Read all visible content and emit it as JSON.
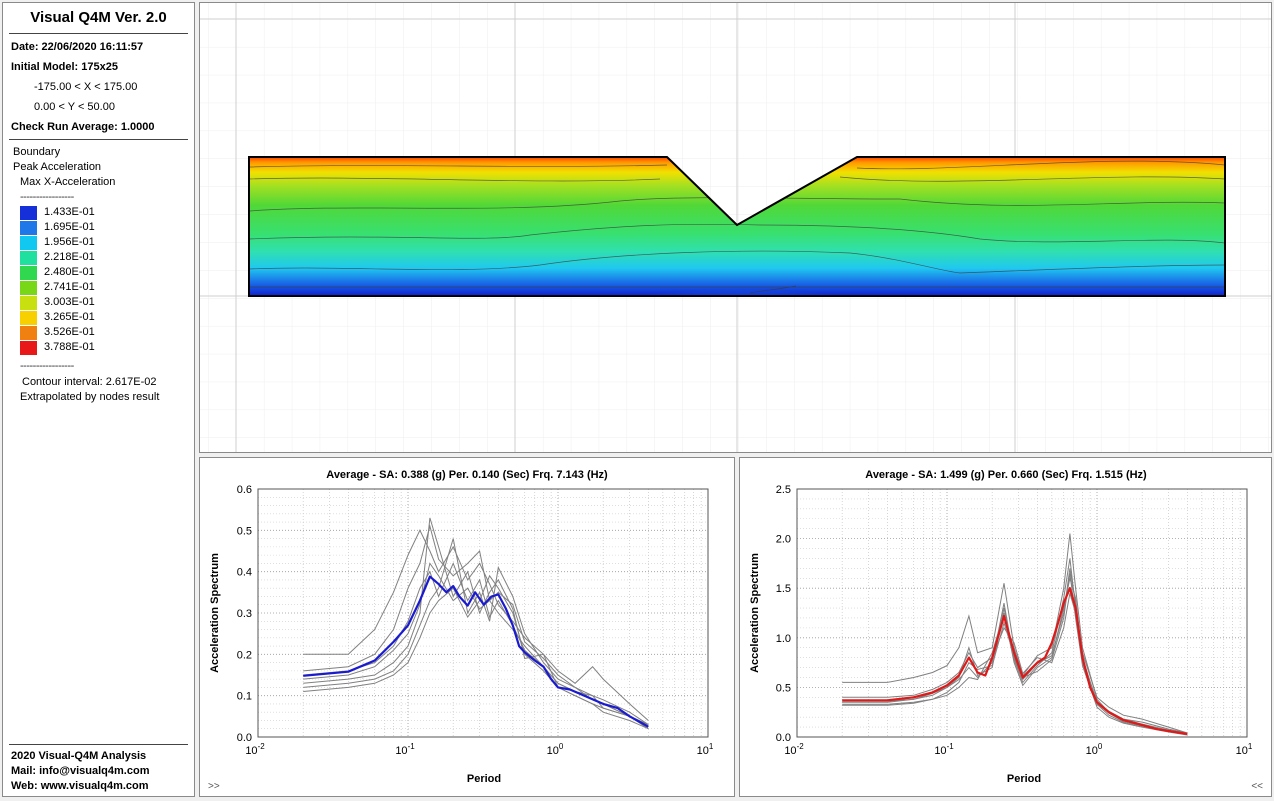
{
  "sidebar": {
    "title": "Visual Q4M Ver. 2.0",
    "date": "Date: 22/06/2020 16:11:57",
    "initial_model": "Initial Model: 175x25",
    "x_range": "-175.00 < X < 175.00",
    "y_range": "0.00 < Y < 50.00",
    "check_run": "Check Run Average: 1.0000",
    "boundary": "Boundary",
    "peak_acceleration": "Peak Acceleration",
    "max_x_acceleration": "Max X-Acceleration",
    "dashes": "-----------------",
    "legend": [
      {
        "label": "1.433E-01",
        "color": "#1530d8"
      },
      {
        "label": "1.695E-01",
        "color": "#1e78e8"
      },
      {
        "label": "1.956E-01",
        "color": "#10c8f0"
      },
      {
        "label": "2.218E-01",
        "color": "#20e0a0"
      },
      {
        "label": "2.480E-01",
        "color": "#30d850"
      },
      {
        "label": "2.741E-01",
        "color": "#78d818"
      },
      {
        "label": "3.003E-01",
        "color": "#c8e010"
      },
      {
        "label": "3.265E-01",
        "color": "#f8d000"
      },
      {
        "label": "3.526E-01",
        "color": "#f08010"
      },
      {
        "label": "3.788E-01",
        "color": "#e81818"
      }
    ],
    "contour_interval": "Contour interval: 2.617E-02",
    "extrapolated": "Extrapolated by nodes result",
    "footer_1": "2020 Visual-Q4M Analysis",
    "footer_2": "Mail: info@visualq4m.com",
    "footer_3": "Web: www.visualq4m.com"
  },
  "nav": {
    "left": ">>",
    "right": "<<"
  },
  "chart_data": [
    {
      "type": "line",
      "title": "Average - SA: 0.388 (g) Per. 0.140 (Sec) Frq. 7.143 (Hz)",
      "xlabel": "Period",
      "ylabel": "Acceleration Spectrum",
      "x_scale": "log",
      "xlim": [
        0.01,
        10
      ],
      "ylim": [
        0,
        0.6
      ],
      "x_ticks": [
        "10-2",
        "10-1",
        "10^0",
        "10^1"
      ],
      "y_ticks": [
        "0.0",
        "0.1",
        "0.2",
        "0.3",
        "0.4",
        "0.5",
        "0.6"
      ],
      "grid": true,
      "average_color": "#1a1ad0",
      "record_color": "#808080",
      "average": {
        "x": [
          0.02,
          0.04,
          0.06,
          0.08,
          0.1,
          0.12,
          0.14,
          0.16,
          0.18,
          0.2,
          0.22,
          0.25,
          0.28,
          0.32,
          0.36,
          0.4,
          0.45,
          0.5,
          0.55,
          0.6,
          0.7,
          0.8,
          0.9,
          1.0,
          1.2,
          1.5,
          2.0,
          2.5,
          3.0,
          4.0
        ],
        "y": [
          0.148,
          0.158,
          0.185,
          0.23,
          0.27,
          0.33,
          0.388,
          0.37,
          0.35,
          0.365,
          0.34,
          0.318,
          0.35,
          0.32,
          0.34,
          0.345,
          0.31,
          0.27,
          0.22,
          0.205,
          0.185,
          0.17,
          0.14,
          0.12,
          0.115,
          0.1,
          0.08,
          0.07,
          0.05,
          0.025
        ]
      },
      "records": [
        {
          "x": [
            0.02,
            0.04,
            0.06,
            0.08,
            0.1,
            0.12,
            0.14,
            0.16,
            0.2,
            0.25,
            0.3,
            0.35,
            0.4,
            0.5,
            0.6,
            0.8,
            1.0,
            1.3,
            1.7,
            2.0,
            3.0,
            4.0
          ],
          "y": [
            0.2,
            0.2,
            0.26,
            0.35,
            0.44,
            0.5,
            0.45,
            0.4,
            0.46,
            0.38,
            0.42,
            0.37,
            0.32,
            0.28,
            0.24,
            0.2,
            0.16,
            0.13,
            0.17,
            0.14,
            0.08,
            0.04
          ]
        },
        {
          "x": [
            0.02,
            0.04,
            0.06,
            0.08,
            0.1,
            0.12,
            0.14,
            0.16,
            0.2,
            0.25,
            0.3,
            0.35,
            0.4,
            0.5,
            0.6,
            0.8,
            1.0,
            1.3,
            1.7,
            2.0,
            3.0,
            4.0
          ],
          "y": [
            0.16,
            0.17,
            0.2,
            0.26,
            0.36,
            0.42,
            0.51,
            0.43,
            0.39,
            0.42,
            0.45,
            0.33,
            0.3,
            0.26,
            0.22,
            0.17,
            0.13,
            0.11,
            0.09,
            0.08,
            0.05,
            0.03
          ]
        },
        {
          "x": [
            0.02,
            0.04,
            0.06,
            0.08,
            0.1,
            0.12,
            0.14,
            0.16,
            0.2,
            0.25,
            0.3,
            0.35,
            0.4,
            0.5,
            0.6,
            0.8,
            1.0,
            1.3,
            1.7,
            2.0,
            3.0,
            4.0
          ],
          "y": [
            0.13,
            0.14,
            0.15,
            0.18,
            0.22,
            0.3,
            0.53,
            0.46,
            0.34,
            0.4,
            0.3,
            0.35,
            0.38,
            0.31,
            0.19,
            0.2,
            0.12,
            0.1,
            0.08,
            0.07,
            0.05,
            0.02
          ]
        },
        {
          "x": [
            0.02,
            0.04,
            0.06,
            0.08,
            0.1,
            0.12,
            0.14,
            0.16,
            0.2,
            0.25,
            0.3,
            0.35,
            0.4,
            0.5,
            0.6,
            0.8,
            1.0,
            1.3,
            1.7,
            2.0,
            3.0,
            4.0
          ],
          "y": [
            0.12,
            0.13,
            0.14,
            0.16,
            0.2,
            0.27,
            0.33,
            0.36,
            0.48,
            0.3,
            0.35,
            0.28,
            0.41,
            0.34,
            0.25,
            0.18,
            0.14,
            0.12,
            0.1,
            0.09,
            0.06,
            0.03
          ]
        },
        {
          "x": [
            0.02,
            0.04,
            0.06,
            0.08,
            0.1,
            0.12,
            0.14,
            0.16,
            0.2,
            0.25,
            0.3,
            0.35,
            0.4,
            0.5,
            0.6,
            0.8,
            1.0,
            1.3,
            1.7,
            2.0,
            3.0,
            4.0
          ],
          "y": [
            0.11,
            0.12,
            0.13,
            0.15,
            0.18,
            0.24,
            0.3,
            0.33,
            0.36,
            0.29,
            0.33,
            0.39,
            0.36,
            0.3,
            0.2,
            0.16,
            0.12,
            0.1,
            0.08,
            0.06,
            0.04,
            0.02
          ]
        },
        {
          "x": [
            0.02,
            0.04,
            0.06,
            0.08,
            0.1,
            0.12,
            0.14,
            0.16,
            0.2,
            0.25,
            0.3,
            0.35,
            0.4,
            0.5,
            0.6,
            0.8,
            1.0,
            1.3,
            1.7,
            2.0,
            3.0,
            4.0
          ],
          "y": [
            0.14,
            0.15,
            0.17,
            0.21,
            0.25,
            0.32,
            0.42,
            0.39,
            0.33,
            0.36,
            0.31,
            0.33,
            0.35,
            0.32,
            0.23,
            0.19,
            0.15,
            0.12,
            0.09,
            0.08,
            0.05,
            0.03
          ]
        },
        {
          "x": [
            0.02,
            0.04,
            0.06,
            0.08,
            0.1,
            0.12,
            0.14,
            0.16,
            0.2,
            0.25,
            0.3,
            0.35,
            0.4,
            0.5,
            0.6,
            0.8,
            1.0,
            1.3,
            1.7,
            2.0,
            3.0,
            4.0
          ],
          "y": [
            0.15,
            0.16,
            0.18,
            0.22,
            0.28,
            0.36,
            0.4,
            0.34,
            0.42,
            0.33,
            0.38,
            0.29,
            0.33,
            0.27,
            0.21,
            0.17,
            0.13,
            0.11,
            0.1,
            0.07,
            0.05,
            0.02
          ]
        }
      ]
    },
    {
      "type": "line",
      "title": "Average - SA: 1.499 (g) Per. 0.660 (Sec) Frq. 1.515 (Hz)",
      "xlabel": "Period",
      "ylabel": "Acceleration Spectrum",
      "x_scale": "log",
      "xlim": [
        0.01,
        10
      ],
      "ylim": [
        0,
        2.5
      ],
      "x_ticks": [
        "10-2",
        "10-1",
        "10^0",
        "10^1"
      ],
      "y_ticks": [
        "0.0",
        "0.5",
        "1.0",
        "1.5",
        "2.0",
        "2.5"
      ],
      "grid": true,
      "average_color": "#e01818",
      "record_color": "#808080",
      "average": {
        "x": [
          0.02,
          0.04,
          0.06,
          0.08,
          0.1,
          0.12,
          0.14,
          0.16,
          0.18,
          0.2,
          0.24,
          0.28,
          0.32,
          0.36,
          0.4,
          0.45,
          0.5,
          0.55,
          0.6,
          0.66,
          0.72,
          0.8,
          0.9,
          1.0,
          1.2,
          1.5,
          2.0,
          2.5,
          3.0,
          4.0
        ],
        "y": [
          0.37,
          0.37,
          0.4,
          0.45,
          0.52,
          0.62,
          0.8,
          0.65,
          0.62,
          0.8,
          1.22,
          0.85,
          0.6,
          0.68,
          0.75,
          0.8,
          0.95,
          1.15,
          1.35,
          1.5,
          1.3,
          0.8,
          0.5,
          0.35,
          0.25,
          0.17,
          0.12,
          0.08,
          0.06,
          0.03
        ]
      },
      "records": [
        {
          "x": [
            0.02,
            0.04,
            0.06,
            0.08,
            0.1,
            0.12,
            0.14,
            0.16,
            0.2,
            0.24,
            0.28,
            0.32,
            0.4,
            0.5,
            0.6,
            0.66,
            0.72,
            0.8,
            1.0,
            1.2,
            1.5,
            2.0,
            3.0,
            4.0
          ],
          "y": [
            0.55,
            0.55,
            0.6,
            0.65,
            0.72,
            0.9,
            1.22,
            0.85,
            0.9,
            1.55,
            0.9,
            0.62,
            0.82,
            0.9,
            1.5,
            2.05,
            1.5,
            0.9,
            0.38,
            0.25,
            0.18,
            0.15,
            0.08,
            0.04
          ]
        },
        {
          "x": [
            0.02,
            0.04,
            0.06,
            0.08,
            0.1,
            0.12,
            0.14,
            0.16,
            0.2,
            0.24,
            0.28,
            0.32,
            0.4,
            0.5,
            0.6,
            0.66,
            0.72,
            0.8,
            1.0,
            1.2,
            1.5,
            2.0,
            3.0,
            4.0
          ],
          "y": [
            0.35,
            0.35,
            0.38,
            0.42,
            0.5,
            0.58,
            0.7,
            0.6,
            0.75,
            1.35,
            0.78,
            0.55,
            0.72,
            0.85,
            1.4,
            1.8,
            1.3,
            0.75,
            0.33,
            0.22,
            0.15,
            0.11,
            0.06,
            0.03
          ]
        },
        {
          "x": [
            0.02,
            0.04,
            0.06,
            0.08,
            0.1,
            0.12,
            0.14,
            0.16,
            0.2,
            0.24,
            0.28,
            0.32,
            0.4,
            0.5,
            0.6,
            0.66,
            0.72,
            0.8,
            1.0,
            1.2,
            1.5,
            2.0,
            3.0,
            4.0
          ],
          "y": [
            0.33,
            0.33,
            0.35,
            0.38,
            0.45,
            0.55,
            0.75,
            0.68,
            0.72,
            1.15,
            0.82,
            0.6,
            0.66,
            0.78,
            1.2,
            1.65,
            1.2,
            0.72,
            0.3,
            0.2,
            0.14,
            0.1,
            0.05,
            0.02
          ]
        },
        {
          "x": [
            0.02,
            0.04,
            0.06,
            0.08,
            0.1,
            0.12,
            0.14,
            0.16,
            0.2,
            0.24,
            0.28,
            0.32,
            0.4,
            0.5,
            0.6,
            0.66,
            0.72,
            0.8,
            1.0,
            1.2,
            1.5,
            2.0,
            3.0,
            4.0
          ],
          "y": [
            0.32,
            0.32,
            0.34,
            0.38,
            0.42,
            0.5,
            0.6,
            0.58,
            0.85,
            1.25,
            0.75,
            0.52,
            0.7,
            0.8,
            1.3,
            1.6,
            1.4,
            0.8,
            0.34,
            0.24,
            0.16,
            0.12,
            0.06,
            0.03
          ]
        },
        {
          "x": [
            0.02,
            0.04,
            0.06,
            0.08,
            0.1,
            0.12,
            0.14,
            0.16,
            0.2,
            0.24,
            0.28,
            0.32,
            0.4,
            0.5,
            0.6,
            0.66,
            0.72,
            0.8,
            1.0,
            1.2,
            1.5,
            2.0,
            3.0,
            4.0
          ],
          "y": [
            0.4,
            0.4,
            0.42,
            0.48,
            0.55,
            0.65,
            0.85,
            0.7,
            0.8,
            1.1,
            0.95,
            0.64,
            0.8,
            0.75,
            1.1,
            1.45,
            1.25,
            0.85,
            0.4,
            0.3,
            0.22,
            0.18,
            0.1,
            0.04
          ]
        },
        {
          "x": [
            0.02,
            0.04,
            0.06,
            0.08,
            0.1,
            0.12,
            0.14,
            0.16,
            0.2,
            0.24,
            0.28,
            0.32,
            0.4,
            0.5,
            0.6,
            0.66,
            0.72,
            0.8,
            1.0,
            1.2,
            1.5,
            2.0,
            3.0,
            4.0
          ],
          "y": [
            0.36,
            0.36,
            0.38,
            0.44,
            0.5,
            0.6,
            0.9,
            0.62,
            0.7,
            1.3,
            0.8,
            0.58,
            0.74,
            0.82,
            1.25,
            1.7,
            1.35,
            0.78,
            0.36,
            0.26,
            0.18,
            0.13,
            0.07,
            0.03
          ]
        }
      ]
    }
  ]
}
